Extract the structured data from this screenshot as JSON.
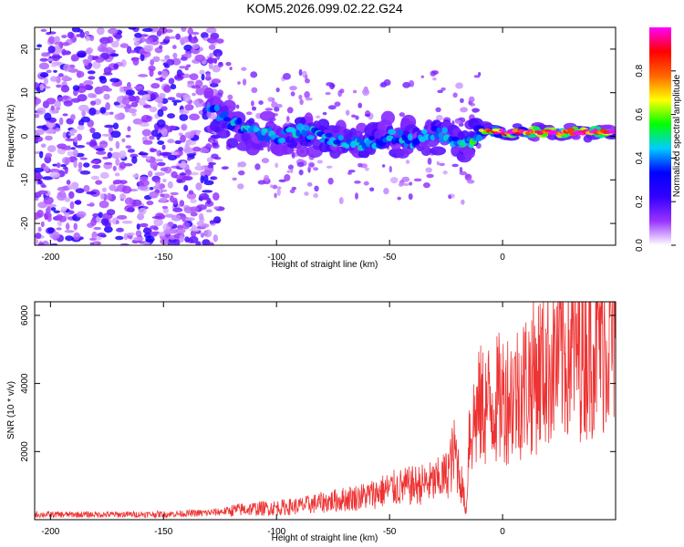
{
  "title": "KOM5.2026.099.02.22.G24",
  "chart_data": [
    {
      "type": "heatmap",
      "name": "spectrogram",
      "xlabel": "Height of straight line (km)",
      "ylabel": "Frequency (Hz)",
      "xlim": [
        -207,
        50
      ],
      "ylim": [
        -25,
        25
      ],
      "xticks": [
        -200,
        -150,
        -100,
        -50,
        0
      ],
      "yticks": [
        -20,
        -10,
        0,
        10,
        20
      ],
      "colorbar": {
        "label": "Normalized spectral amplitude",
        "range": [
          0,
          1
        ],
        "ticks": [
          "0.0",
          "0.2",
          "0.4",
          "0.6",
          "0.8"
        ],
        "tick_values": [
          0,
          0.2,
          0.4,
          0.6,
          0.8
        ],
        "stops": [
          "#ffffff",
          "#9933ff",
          "#3300ff",
          "#0000ff",
          "#00ccff",
          "#00ff00",
          "#ffff00",
          "#ff6600",
          "#ff0000",
          "#ff00ff"
        ]
      },
      "ridge": {
        "x": [
          -130,
          -120,
          -110,
          -100,
          -90,
          -80,
          -70,
          -60,
          -50,
          -40,
          -30,
          -20,
          -15,
          -10,
          0,
          10,
          20,
          30,
          40,
          50
        ],
        "y": [
          7,
          3,
          1,
          0,
          1,
          0,
          -1,
          -2,
          0,
          -1,
          1,
          -1,
          -2,
          1,
          1,
          1,
          1,
          1,
          1,
          1
        ],
        "intensity": [
          0.25,
          0.3,
          0.3,
          0.3,
          0.3,
          0.3,
          0.3,
          0.3,
          0.3,
          0.3,
          0.3,
          0.3,
          0.35,
          0.45,
          0.9,
          0.9,
          0.95,
          0.95,
          0.95,
          0.95
        ]
      },
      "noise_region_x": [
        -207,
        -125
      ]
    },
    {
      "type": "line",
      "name": "snr",
      "xlabel": "Height of straight line (km)",
      "ylabel": "SNR (10 * v/v)",
      "xlim": [
        -207,
        50
      ],
      "ylim": [
        0,
        6400
      ],
      "xticks": [
        -200,
        -150,
        -100,
        -50,
        0
      ],
      "yticks": [
        2000,
        4000,
        6000
      ],
      "color": "#ee3333",
      "envelope": {
        "x": [
          -207,
          -170,
          -150,
          -130,
          -115,
          -100,
          -90,
          -80,
          -70,
          -60,
          -50,
          -40,
          -30,
          -25,
          -21,
          -18,
          -16,
          -15,
          -12,
          -10,
          -5,
          0,
          5,
          10,
          20,
          30,
          40,
          50
        ],
        "y": [
          150,
          150,
          160,
          200,
          300,
          350,
          400,
          500,
          600,
          700,
          900,
          1000,
          1100,
          1300,
          2000,
          1000,
          200,
          2500,
          3000,
          3300,
          3400,
          3600,
          3700,
          4000,
          4600,
          5000,
          5300,
          5500
        ]
      }
    }
  ]
}
